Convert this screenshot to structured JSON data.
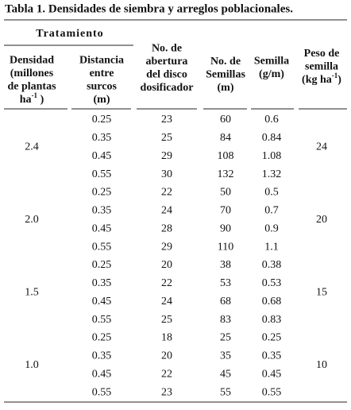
{
  "title": "Tabla 1. Densidades de siembra y arreglos poblacionales.",
  "header": {
    "group_label": "Tratamiento",
    "columns": [
      {
        "lines": [
          "Densidad",
          "(millones",
          "de plantas"
        ],
        "last": {
          "pre": "ha",
          "sup": "-1",
          "post": " )"
        }
      },
      {
        "lines": [
          "Distancia",
          "entre",
          "surcos",
          "(m)"
        ]
      },
      {
        "lines": [
          "No. de",
          "abertura",
          "del disco",
          "dosificador"
        ]
      },
      {
        "lines": [
          "No. de",
          "Semillas",
          "(m)"
        ]
      },
      {
        "lines": [
          "Semilla",
          "(g/m)"
        ]
      },
      {
        "lines": [
          "Peso de",
          "semilla"
        ],
        "last": {
          "pre": "(kg ha",
          "sup": "-1",
          "post": ")"
        }
      }
    ]
  },
  "table": {
    "groups": [
      {
        "density": "2.4",
        "seed_weight": "24",
        "rows": [
          [
            "0.25",
            "23",
            "60",
            "0.6"
          ],
          [
            "0.35",
            "25",
            "84",
            "0.84"
          ],
          [
            "0.45",
            "29",
            "108",
            "1.08"
          ],
          [
            "0.55",
            "30",
            "132",
            "1.32"
          ]
        ]
      },
      {
        "density": "2.0",
        "seed_weight": "20",
        "rows": [
          [
            "0.25",
            "22",
            "50",
            "0.5"
          ],
          [
            "0.35",
            "24",
            "70",
            "0.7"
          ],
          [
            "0.45",
            "28",
            "90",
            "0.9"
          ],
          [
            "0.55",
            "29",
            "110",
            "1.1"
          ]
        ]
      },
      {
        "density": "1.5",
        "seed_weight": "15",
        "rows": [
          [
            "0.25",
            "20",
            "38",
            "0.38"
          ],
          [
            "0.35",
            "22",
            "53",
            "0.53"
          ],
          [
            "0.45",
            "24",
            "68",
            "0.68"
          ],
          [
            "0.55",
            "25",
            "83",
            "0.83"
          ]
        ]
      },
      {
        "density": "1.0",
        "seed_weight": "10",
        "rows": [
          [
            "0.25",
            "18",
            "25",
            "0.25"
          ],
          [
            "0.35",
            "20",
            "35",
            "0.35"
          ],
          [
            "0.45",
            "22",
            "45",
            "0.45"
          ],
          [
            "0.55",
            "23",
            "55",
            "0.55"
          ]
        ]
      }
    ]
  }
}
